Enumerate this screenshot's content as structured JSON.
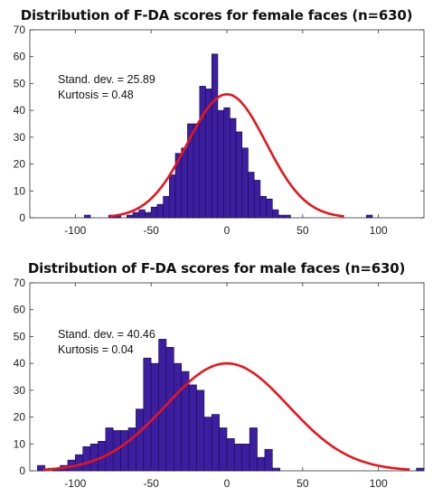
{
  "chart_data": [
    {
      "type": "bar",
      "title": "Distribution of F-DA scores for female faces (n=630)",
      "xlabel": "",
      "ylabel": "",
      "xlim": [
        -130,
        130
      ],
      "ylim": [
        0,
        70
      ],
      "xticks": [
        -100,
        -50,
        0,
        50,
        100
      ],
      "yticks": [
        0,
        10,
        20,
        30,
        40,
        50,
        60,
        70
      ],
      "bin_width": 4,
      "bin_start": -78,
      "values": [
        1,
        1,
        0,
        1,
        2,
        3,
        2,
        4,
        5,
        8,
        16,
        24,
        26,
        35,
        35,
        49,
        48,
        61,
        40,
        41,
        37,
        32,
        26,
        17,
        14,
        8,
        7,
        3,
        1,
        1
      ],
      "outliers": [
        {
          "x": -92,
          "y": 1
        },
        {
          "x": 94,
          "y": 1
        }
      ],
      "fit": {
        "type": "normal",
        "mean": 0,
        "sd": 25.89,
        "peak": 46
      },
      "annotations": [
        "Stand. dev. = 25.89",
        "Kurtosis = 0.48"
      ],
      "bar_color": "#3b1fa0",
      "fit_color": "#e8141b"
    },
    {
      "type": "bar",
      "title": "Distribution of F-DA scores for male faces (n=630)",
      "xlabel": "",
      "ylabel": "",
      "xlim": [
        -130,
        130
      ],
      "ylim": [
        0,
        70
      ],
      "xticks": [
        -100,
        -50,
        0,
        50,
        100
      ],
      "yticks": [
        0,
        10,
        20,
        30,
        40,
        50,
        60,
        70
      ],
      "bin_width": 5,
      "bin_start": -125,
      "values": [
        2,
        0,
        1,
        2,
        4,
        6,
        9,
        10,
        11,
        16,
        15,
        15,
        16,
        23,
        42,
        40,
        49,
        46,
        40,
        37,
        32,
        30,
        20,
        21,
        16,
        12,
        10,
        10,
        16,
        5,
        8,
        1,
        0,
        0,
        0,
        0,
        0,
        0,
        0,
        0,
        0,
        0,
        0,
        0,
        0,
        0,
        0,
        0,
        0,
        0,
        1
      ],
      "fit": {
        "type": "normal",
        "mean": 0,
        "sd": 40.46,
        "peak": 40
      },
      "annotations": [
        "Stand. dev. = 40.46",
        "Kurtosis = 0.04"
      ],
      "bar_color": "#3b1fa0",
      "fit_color": "#e8141b"
    }
  ]
}
